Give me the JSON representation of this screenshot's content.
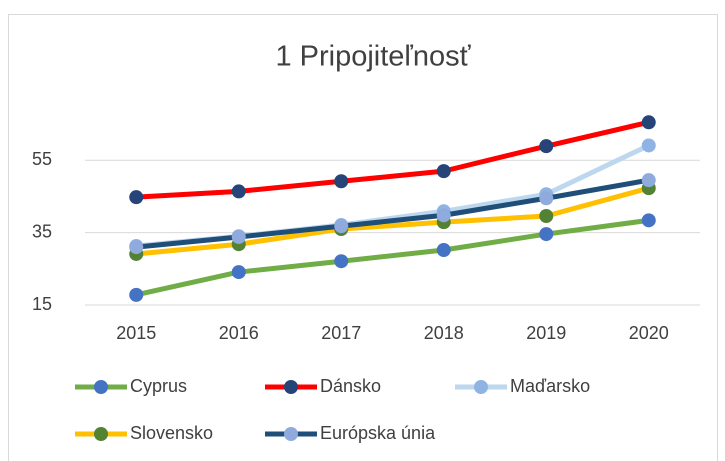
{
  "chart_data": {
    "type": "line",
    "title": "1 Pripojiteľnosť",
    "categories": [
      "2015",
      "2016",
      "2017",
      "2018",
      "2019",
      "2020"
    ],
    "ylim": [
      15,
      70
    ],
    "yticks": [
      15,
      35,
      55
    ],
    "grid": true,
    "legend": "bottom",
    "series": [
      {
        "name": "Cyprus",
        "color": "#70ad47",
        "marker_color": "#4472c4",
        "values": [
          17.8,
          24.1,
          27.1,
          30.2,
          34.6,
          38.4
        ]
      },
      {
        "name": "Dánsko",
        "color": "#ff0000",
        "marker_color": "#264478",
        "values": [
          44.8,
          46.4,
          49.2,
          52.0,
          58.9,
          65.5
        ]
      },
      {
        "name": "Maďarsko",
        "color": "#bdd7ee",
        "marker_color": "#8fb4e3",
        "values": [
          31.3,
          34.0,
          37.1,
          40.9,
          45.6,
          59.1
        ]
      },
      {
        "name": "Slovensko",
        "color": "#ffc000",
        "marker_color": "#548235",
        "values": [
          29.1,
          31.8,
          36.0,
          37.9,
          39.6,
          47.3
        ]
      },
      {
        "name": "Európska únia",
        "color": "#1f4e79",
        "marker_color": "#8faadc",
        "values": [
          31.0,
          33.8,
          36.8,
          39.8,
          44.5,
          49.5
        ]
      }
    ]
  }
}
